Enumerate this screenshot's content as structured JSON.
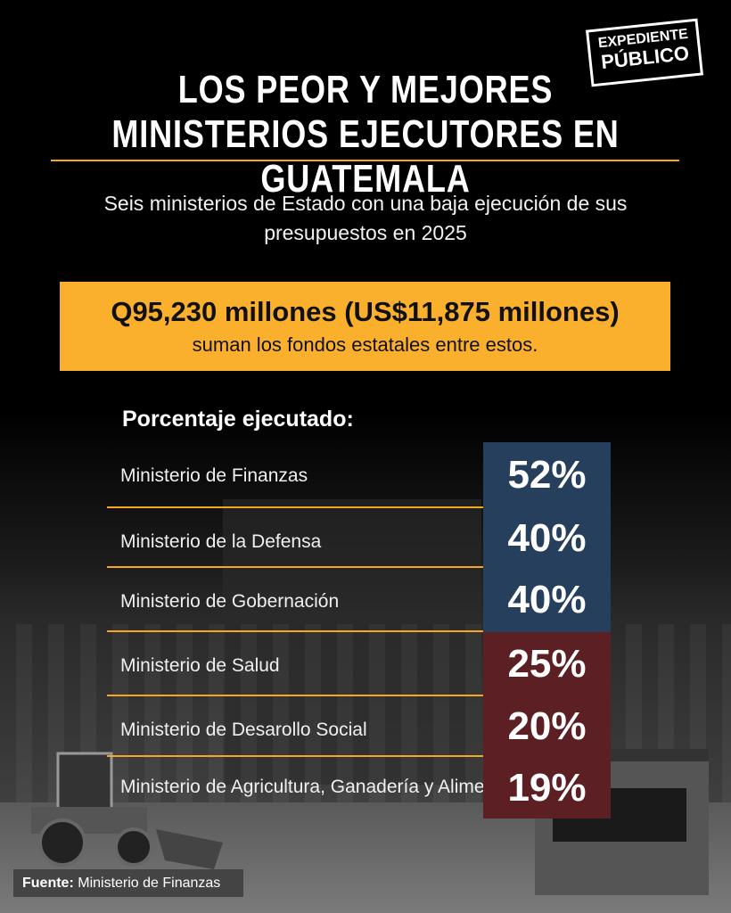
{
  "logo": {
    "line1": "EXPEDIENTE",
    "line2": "PÚBLICO"
  },
  "title": {
    "line1": "LOS PEOR Y MEJORES",
    "line2": "MINISTERIOS EJECUTORES EN GUATEMALA"
  },
  "subtitle": "Seis ministerios de Estado con una baja ejecución de sus presupuestos en 2025",
  "highlight": {
    "amount": "Q95,230 millones (US$11,875 millones)",
    "caption": "suman los fondos estatales entre estos."
  },
  "chart_data": {
    "type": "table",
    "title": "Porcentaje ejecutado:",
    "categories": [
      "Ministerio de Finanzas",
      "Ministerio de la Defensa",
      "Ministerio de Gobernación",
      "Ministerio de Salud",
      "Ministerio de Desarollo Social",
      "Ministerio de Agricultura, Ganadería y Alimentación"
    ],
    "values": [
      52,
      40,
      40,
      25,
      20,
      19
    ],
    "value_labels": [
      "52%",
      "40%",
      "40%",
      "25%",
      "20%",
      "19%"
    ],
    "colors": {
      "higher": "#263f5c",
      "lower": "#5c1f24",
      "accent": "#f5a623",
      "highlight_box": "#fbb02d"
    }
  },
  "source": {
    "label": "Fuente:",
    "text": "Ministerio de Finanzas"
  }
}
